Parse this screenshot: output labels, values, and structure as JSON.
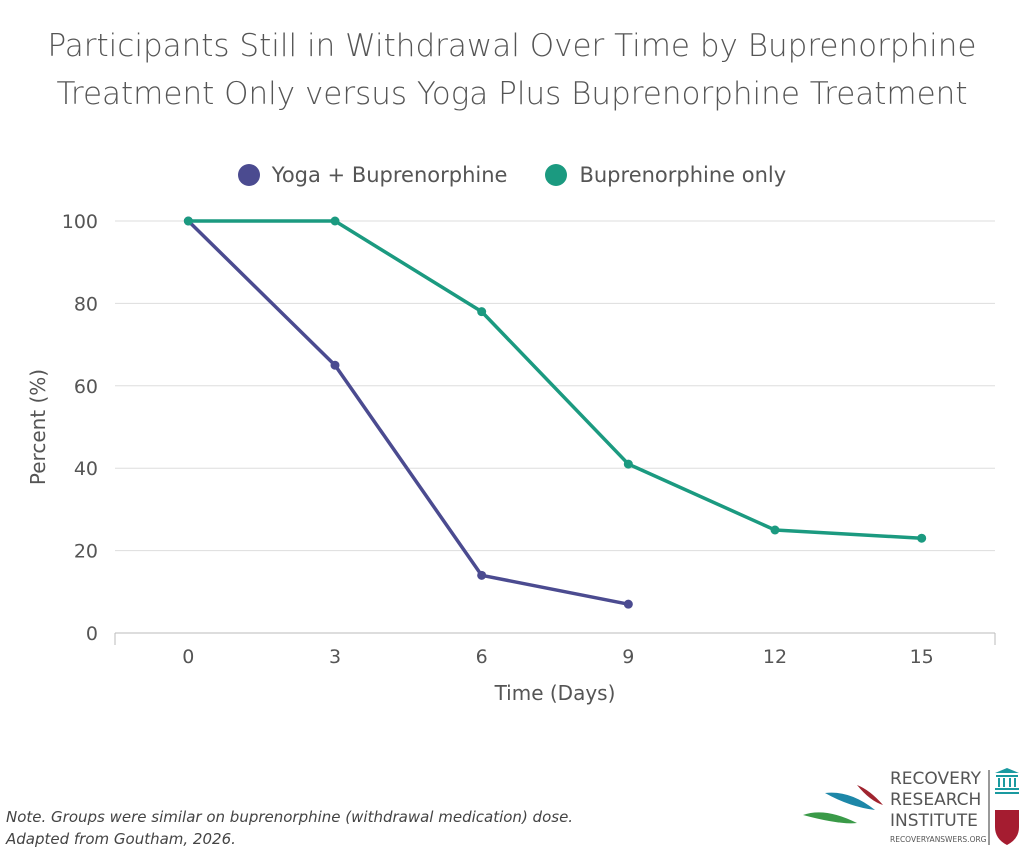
{
  "chart_data": {
    "type": "line",
    "title_lines": [
      "Participants Still in Withdrawal Over Time by Buprenorphine",
      "Treatment Only versus Yoga Plus Buprenorphine Treatment"
    ],
    "xlabel": "Time (Days)",
    "ylabel": "Percent (%)",
    "x_ticks": [
      0,
      3,
      6,
      9,
      12,
      15
    ],
    "y_ticks": [
      0,
      20,
      40,
      60,
      80,
      100
    ],
    "xlim": [
      -1.5,
      16.5
    ],
    "ylim": [
      0,
      100
    ],
    "grid": true,
    "legend_position": "top-center",
    "series": [
      {
        "name": "Yoga + Buprenorphine",
        "color": "#4b4b90",
        "x": [
          0,
          3,
          6,
          9
        ],
        "y": [
          100,
          65,
          14,
          7
        ]
      },
      {
        "name": "Buprenorphine only",
        "color": "#1b9a80",
        "x": [
          0,
          3,
          6,
          9,
          12,
          15
        ],
        "y": [
          100,
          100,
          78,
          41,
          25,
          23
        ]
      }
    ]
  },
  "note_lines": [
    "Note. Groups were similar on buprenorphine (withdrawal medication) dose.",
    "Adapted from Goutham, 2026."
  ],
  "logo": {
    "line1": "RECOVERY",
    "line2": "RESEARCH",
    "line3": "INSTITUTE",
    "url": "RECOVERYANSWERS.ORG"
  }
}
